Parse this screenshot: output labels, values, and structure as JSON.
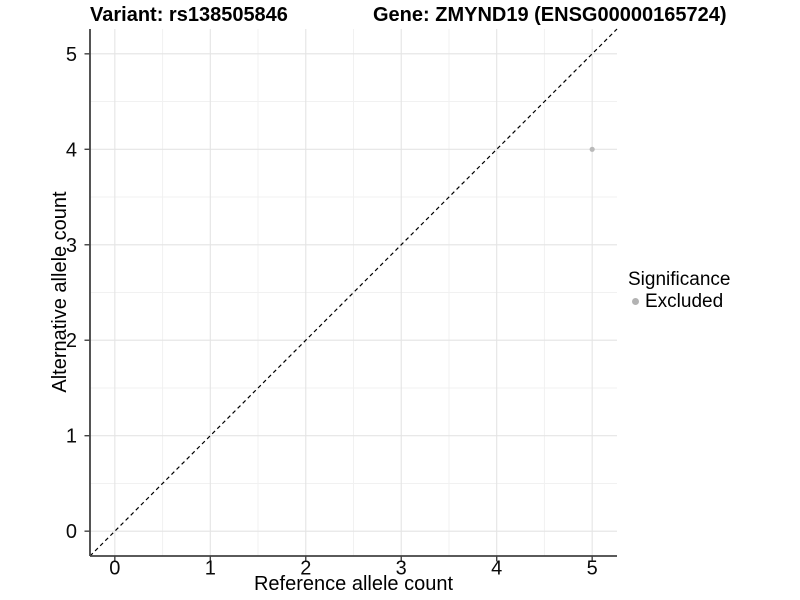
{
  "chart_data": {
    "type": "scatter",
    "titles": {
      "left": "Variant: rs138505846",
      "right": "Gene: ZMYND19 (ENSG00000165724)"
    },
    "xlabel": "Reference allele count",
    "ylabel": "Alternative allele count",
    "xlim": [
      -0.26,
      5.26
    ],
    "ylim": [
      -0.26,
      5.26
    ],
    "x_ticks": [
      0,
      1,
      2,
      3,
      4,
      5
    ],
    "y_ticks": [
      0,
      1,
      2,
      3,
      4,
      5
    ],
    "x_minor_ticks": [
      0.5,
      1.5,
      2.5,
      3.5,
      4.5
    ],
    "y_minor_ticks": [
      0.5,
      1.5,
      2.5,
      3.5,
      4.5
    ],
    "grid": "on",
    "series": [
      {
        "name": "Excluded",
        "color": "#b9b9b9",
        "points": [
          {
            "x": 5,
            "y": 4
          }
        ]
      }
    ],
    "reference_line": {
      "kind": "identity y=x",
      "style": "dashed",
      "color": "#000000"
    },
    "legend": {
      "title": "Significance",
      "position": "right",
      "items": [
        {
          "label": "Excluded",
          "color": "#b3b3b3",
          "marker": "circle"
        }
      ]
    }
  },
  "colors": {
    "background": "#ffffff",
    "grid_major": "#e4e4e4",
    "grid_minor": "#f1f1f1",
    "axis_line": "#424242",
    "tick_mark": "#424242",
    "tick_label": "#0a0a0a",
    "dashed_line": "#000000"
  }
}
